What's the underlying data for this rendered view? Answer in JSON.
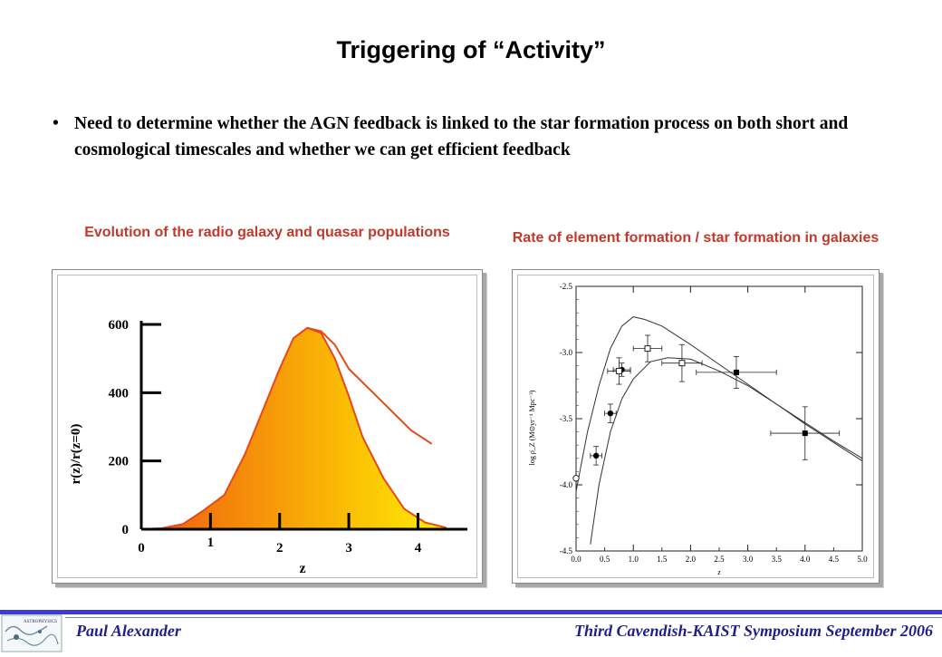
{
  "slide": {
    "title": "Triggering of “Activity”",
    "bullet_symbol": "•",
    "bullet_text": "Need to determine whether the AGN feedback is linked to the star formation process on both short and cosmological timescales and whether we can get efficient feedback"
  },
  "captions": {
    "left": "Evolution of the radio galaxy and quasar populations",
    "right": "Rate of element formation / star formation in galaxies"
  },
  "footer": {
    "author": "Paul Alexander",
    "event": "Third Cavendish-KAIST Symposium September 2006",
    "logo_text_1": "ASTROPHYSICS"
  },
  "colors": {
    "caption": "#c0392b",
    "footer_text": "#1f1f8c",
    "footer_bar": "#3c3cd2",
    "curve_line": "#e8471c",
    "fill_left": "#f05a0f",
    "fill_right": "#ffee00"
  },
  "chart_data": [
    {
      "type": "area",
      "title": "",
      "xlabel": "z",
      "ylabel": "r(z)/r(z=0)",
      "xlim": [
        0,
        4.4
      ],
      "ylim": [
        0,
        600
      ],
      "x_ticks": [
        "0",
        "1",
        "2",
        "3",
        "4"
      ],
      "y_ticks": [
        "0",
        "200",
        "400",
        "600"
      ],
      "series": [
        {
          "x": [
            0,
            0.3,
            0.6,
            0.9,
            1.2,
            1.5,
            1.8,
            2.0,
            2.2,
            2.4,
            2.6,
            2.8,
            3.0,
            3.2,
            3.5,
            3.8,
            4.1,
            4.4
          ],
          "y": [
            0,
            3,
            15,
            55,
            100,
            220,
            370,
            470,
            560,
            590,
            575,
            500,
            390,
            270,
            150,
            60,
            20,
            5
          ]
        },
        {
          "x": [
            2.4,
            2.6,
            2.8,
            3.0,
            3.3,
            3.6,
            3.9,
            4.2
          ],
          "y": [
            590,
            580,
            540,
            470,
            410,
            350,
            290,
            250
          ]
        }
      ]
    },
    {
      "type": "scatter",
      "title": "",
      "xlabel": "z",
      "ylabel": "log ρ̇_Z  (M⊙yr⁻¹ Mpc⁻³)",
      "xlim": [
        0,
        5.0
      ],
      "ylim": [
        -4.5,
        -2.5
      ],
      "x_ticks": [
        "0.0",
        "1.0",
        "2.0",
        "3.0",
        "4.0",
        "5.0"
      ],
      "x_minor_ticks": [
        "0.5",
        "1.5",
        "2.5",
        "3.5",
        "4.5"
      ],
      "y_ticks": [
        "-2.5",
        "-3.0",
        "-3.5",
        "-4.0",
        "-4.5"
      ],
      "points": [
        {
          "x": 0.0,
          "y": -3.95,
          "xerr": 0.0,
          "yerr": 0.0,
          "marker": "open-circle"
        },
        {
          "x": 0.35,
          "y": -3.78,
          "xerr": 0.1,
          "yerr": 0.07,
          "marker": "filled-circle"
        },
        {
          "x": 0.6,
          "y": -3.46,
          "xerr": 0.1,
          "yerr": 0.07,
          "marker": "filled-circle"
        },
        {
          "x": 0.8,
          "y": -3.13,
          "xerr": 0.15,
          "yerr": 0.05,
          "marker": "filled-circle"
        },
        {
          "x": 0.75,
          "y": -3.14,
          "xerr": 0.2,
          "yerr": 0.1,
          "marker": "open-square"
        },
        {
          "x": 1.25,
          "y": -2.97,
          "xerr": 0.25,
          "yerr": 0.1,
          "marker": "open-square"
        },
        {
          "x": 1.85,
          "y": -3.08,
          "xerr": 0.35,
          "yerr": 0.14,
          "marker": "open-square"
        },
        {
          "x": 2.8,
          "y": -3.15,
          "xerr": 0.7,
          "yerr": 0.12,
          "marker": "filled-square"
        },
        {
          "x": 4.0,
          "y": -3.61,
          "xerr": 0.6,
          "yerr": 0.2,
          "marker": "filled-square"
        }
      ],
      "curves": [
        {
          "x": [
            0.0,
            0.2,
            0.4,
            0.6,
            0.8,
            1.0,
            1.2,
            1.5,
            2.0,
            2.5,
            3.0,
            3.5,
            4.0,
            4.5,
            5.0
          ],
          "y": [
            -4.05,
            -3.6,
            -3.25,
            -2.97,
            -2.8,
            -2.73,
            -2.75,
            -2.8,
            -2.94,
            -3.09,
            -3.24,
            -3.39,
            -3.54,
            -3.68,
            -3.82
          ]
        },
        {
          "x": [
            0.25,
            0.4,
            0.6,
            0.8,
            1.0,
            1.3,
            1.6,
            2.0,
            2.5,
            3.0,
            3.5,
            4.0,
            4.5,
            5.0
          ],
          "y": [
            -4.45,
            -4.0,
            -3.6,
            -3.35,
            -3.2,
            -3.07,
            -3.04,
            -3.05,
            -3.14,
            -3.25,
            -3.39,
            -3.53,
            -3.67,
            -3.8
          ]
        }
      ]
    }
  ]
}
